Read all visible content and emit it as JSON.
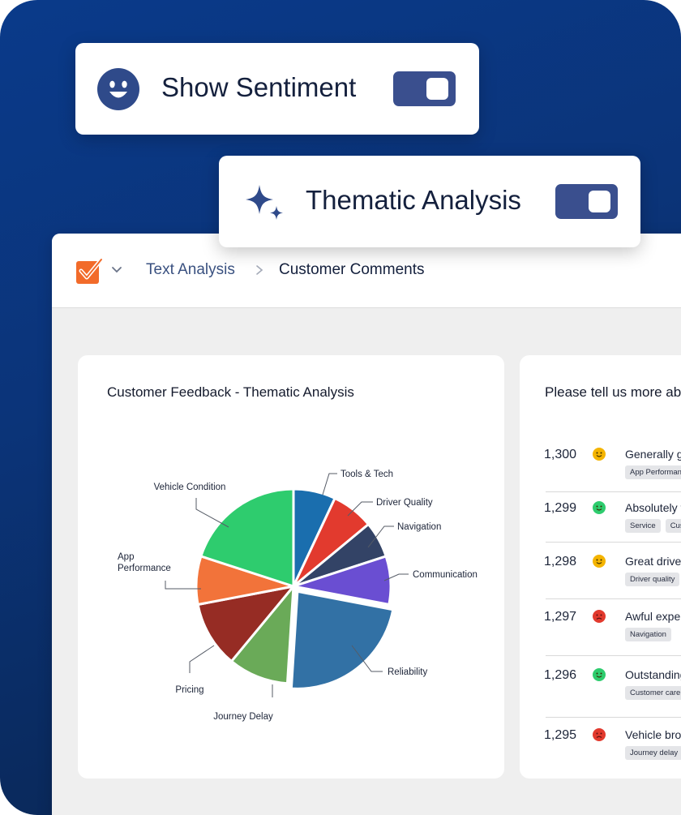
{
  "toggles": {
    "sentiment": {
      "label": "Show Sentiment",
      "icon": "smile-icon",
      "on": true
    },
    "thematic": {
      "label": "Thematic Analysis",
      "icon": "sparkle-icon",
      "on": true
    }
  },
  "header": {
    "logo_icon": "checkmark-logo-icon",
    "breadcrumb": {
      "parent": "Text Analysis",
      "current": "Customer Comments"
    }
  },
  "chart_card": {
    "title": "Customer Feedback - Thematic Analysis"
  },
  "chart_data": {
    "type": "pie",
    "title": "Customer Feedback - Thematic Analysis",
    "slices": [
      {
        "label": "Tools & Tech",
        "value": 7,
        "color": "#1a6eae"
      },
      {
        "label": "Driver Quality",
        "value": 7,
        "color": "#e23a2e"
      },
      {
        "label": "Navigation",
        "value": 6,
        "color": "#334366"
      },
      {
        "label": "Communication",
        "value": 8,
        "color": "#6a4ed2"
      },
      {
        "label": "Reliability",
        "value": 23,
        "color": "#3271a5"
      },
      {
        "label": "Journey Delay",
        "value": 10,
        "color": "#6aaa58"
      },
      {
        "label": "Pricing",
        "value": 11,
        "color": "#962c24"
      },
      {
        "label": "App Performance",
        "value": 8,
        "color": "#f2733a"
      },
      {
        "label": "Vehicle Condition",
        "value": 20,
        "color": "#2ecc6e"
      }
    ]
  },
  "list_card": {
    "title": "Please tell us more about your experience",
    "rows": [
      {
        "number": "1,300",
        "sentiment": "neutral",
        "text": "Generally good, but the app",
        "tags": [
          "App Performance"
        ]
      },
      {
        "number": "1,299",
        "sentiment": "positive",
        "text": "Absolutely fantastic service",
        "tags": [
          "Service",
          "Customer care"
        ]
      },
      {
        "number": "1,298",
        "sentiment": "neutral",
        "text": "Great driver, but the car",
        "tags": [
          "Driver quality"
        ]
      },
      {
        "number": "1,297",
        "sentiment": "negative",
        "text": "Awful experience, got lost",
        "tags": [
          "Navigation"
        ]
      },
      {
        "number": "1,296",
        "sentiment": "positive",
        "text": "Outstanding support team",
        "tags": [
          "Customer care"
        ]
      },
      {
        "number": "1,295",
        "sentiment": "negative",
        "text": "Vehicle broke down, late",
        "tags": [
          "Journey delay"
        ]
      }
    ]
  },
  "sentiment_colors": {
    "positive": "#2ecc6e",
    "neutral": "#f4b400",
    "negative": "#e23a2e"
  }
}
